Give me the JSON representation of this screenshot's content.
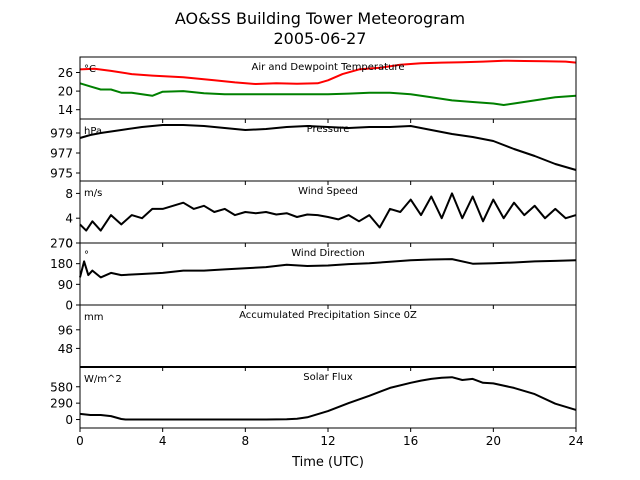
{
  "figure": {
    "title_line1": "AO&SS Building Tower Meteorogram",
    "title_line2": "2005-06-27",
    "xlabel": "Time (UTC)",
    "x_ticks": [
      "0",
      "4",
      "8",
      "12",
      "16",
      "20",
      "24"
    ]
  },
  "chart_data": [
    {
      "type": "line",
      "title": "Air and Dewpoint Temperature",
      "unit": "°C",
      "xlim": [
        0,
        24
      ],
      "ylim": [
        11,
        31
      ],
      "yticks": [
        14,
        20,
        26
      ],
      "series": [
        {
          "color": "#ff0000",
          "x": [
            0,
            0.7,
            1.5,
            2.5,
            3.5,
            5,
            6.5,
            7.5,
            8.5,
            9.5,
            10.5,
            11.5,
            12,
            12.7,
            13.5,
            14.5,
            15.5,
            16.5,
            17.5,
            18.5,
            19.5,
            20.5,
            21.5,
            22.5,
            23.5,
            24
          ],
          "y": [
            27,
            27.2,
            26.5,
            25.5,
            25,
            24.5,
            23.5,
            22.8,
            22.3,
            22.5,
            22.4,
            22.5,
            23.5,
            25.5,
            27,
            27.5,
            28.5,
            29,
            29.2,
            29.3,
            29.5,
            29.8,
            29.7,
            29.6,
            29.5,
            29.2
          ]
        },
        {
          "color": "#008000",
          "x": [
            0,
            0.5,
            1,
            1.5,
            2,
            2.5,
            3,
            3.5,
            4,
            5,
            6,
            7,
            8,
            9,
            10,
            11,
            12,
            13,
            14,
            15,
            16,
            17,
            18,
            19,
            20,
            20.5,
            21,
            22,
            23,
            24
          ],
          "y": [
            22.5,
            21.5,
            20.5,
            20.5,
            19.5,
            19.5,
            19,
            18.5,
            19.8,
            20,
            19.3,
            19,
            19,
            19,
            19,
            19,
            19,
            19.2,
            19.5,
            19.5,
            19,
            18,
            17,
            16.5,
            16,
            15.5,
            16,
            17,
            18,
            18.5
          ]
        }
      ]
    },
    {
      "type": "line",
      "title": "Pressure",
      "unit": "hPa",
      "xlim": [
        0,
        24
      ],
      "ylim": [
        974.2,
        980.4
      ],
      "yticks": [
        975,
        977,
        979
      ],
      "series": [
        {
          "color": "#000000",
          "x": [
            0,
            0.5,
            1,
            2,
            3,
            4,
            5,
            6,
            7,
            8,
            9,
            10,
            11,
            12,
            13,
            14,
            15,
            16,
            17,
            18,
            19,
            20,
            21,
            22,
            23,
            24
          ],
          "y": [
            978.5,
            978.8,
            979,
            979.3,
            979.6,
            979.8,
            979.8,
            979.7,
            979.5,
            979.3,
            979.4,
            979.6,
            979.7,
            979.6,
            979.5,
            979.6,
            979.6,
            979.7,
            979.3,
            978.9,
            978.6,
            978.2,
            977.4,
            976.7,
            975.9,
            975.3
          ]
        }
      ]
    },
    {
      "type": "line",
      "title": "Wind Speed",
      "unit": "m/s",
      "xlim": [
        0,
        24
      ],
      "ylim": [
        0,
        10
      ],
      "yticks": [
        0,
        4,
        8
      ],
      "series": [
        {
          "color": "#000000",
          "x": [
            0,
            0.3,
            0.6,
            1,
            1.5,
            2,
            2.5,
            3,
            3.5,
            4,
            4.5,
            5,
            5.5,
            6,
            6.5,
            7,
            7.5,
            8,
            8.5,
            9,
            9.5,
            10,
            10.5,
            11,
            11.5,
            12,
            12.5,
            13,
            13.5,
            14,
            14.5,
            15,
            15.5,
            16,
            16.5,
            17,
            17.5,
            18,
            18.5,
            19,
            19.5,
            20,
            20.5,
            21,
            21.5,
            22,
            22.5,
            23,
            23.5,
            24
          ],
          "y": [
            3,
            2,
            3.5,
            2,
            4.5,
            3,
            4.5,
            4,
            5.5,
            5.5,
            6,
            6.5,
            5.5,
            6,
            5,
            5.5,
            4.5,
            5,
            4.8,
            5,
            4.6,
            4.8,
            4.2,
            4.6,
            4.5,
            4.2,
            3.8,
            4.5,
            3.5,
            4.5,
            2.5,
            5.5,
            5,
            7,
            4.5,
            7.5,
            4,
            8,
            4,
            7.5,
            3.5,
            7,
            4,
            6.5,
            4.5,
            6,
            4,
            5.5,
            4,
            4.5
          ]
        }
      ]
    },
    {
      "type": "line",
      "title": "Wind Direction",
      "unit": "°",
      "xlim": [
        0,
        24
      ],
      "ylim": [
        0,
        270
      ],
      "yticks": [
        0,
        90,
        180,
        270
      ],
      "series": [
        {
          "color": "#000000",
          "x": [
            0,
            0.2,
            0.4,
            0.6,
            1,
            1.5,
            2,
            3,
            4,
            5,
            6,
            7,
            8,
            9,
            10,
            11,
            12,
            13,
            14,
            15,
            16,
            17,
            18,
            19,
            20,
            21,
            22,
            23,
            24
          ],
          "y": [
            120,
            190,
            130,
            150,
            120,
            140,
            130,
            135,
            140,
            150,
            150,
            155,
            160,
            165,
            175,
            170,
            172,
            178,
            182,
            188,
            195,
            198,
            200,
            180,
            182,
            185,
            190,
            192,
            195
          ]
        }
      ]
    },
    {
      "type": "line",
      "title": "Accumulated Precipitation Since 0Z",
      "unit": "mm",
      "xlim": [
        0,
        24
      ],
      "ylim": [
        0,
        160
      ],
      "yticks": [
        48,
        96
      ],
      "series": [
        {
          "color": "#000000",
          "x": [
            0,
            24
          ],
          "y": [
            0,
            0
          ]
        }
      ]
    },
    {
      "type": "line",
      "title": "Solar Flux",
      "unit": "W/m^2",
      "xlim": [
        0,
        24
      ],
      "ylim": [
        -150,
        930
      ],
      "yticks": [
        0,
        290,
        580
      ],
      "series": [
        {
          "color": "#000000",
          "x": [
            0,
            0.5,
            1,
            1.5,
            2,
            2.2,
            3,
            4,
            5,
            6,
            7,
            8,
            9,
            10,
            10.5,
            11,
            12,
            13,
            14,
            15,
            16,
            16.5,
            17,
            17.5,
            18,
            18.5,
            19,
            19.5,
            20,
            21,
            22,
            23,
            24
          ],
          "y": [
            100,
            80,
            80,
            60,
            10,
            0,
            0,
            0,
            0,
            0,
            0,
            0,
            0,
            5,
            15,
            40,
            150,
            290,
            420,
            560,
            650,
            690,
            720,
            740,
            750,
            700,
            720,
            650,
            640,
            560,
            450,
            280,
            170
          ]
        }
      ]
    }
  ]
}
